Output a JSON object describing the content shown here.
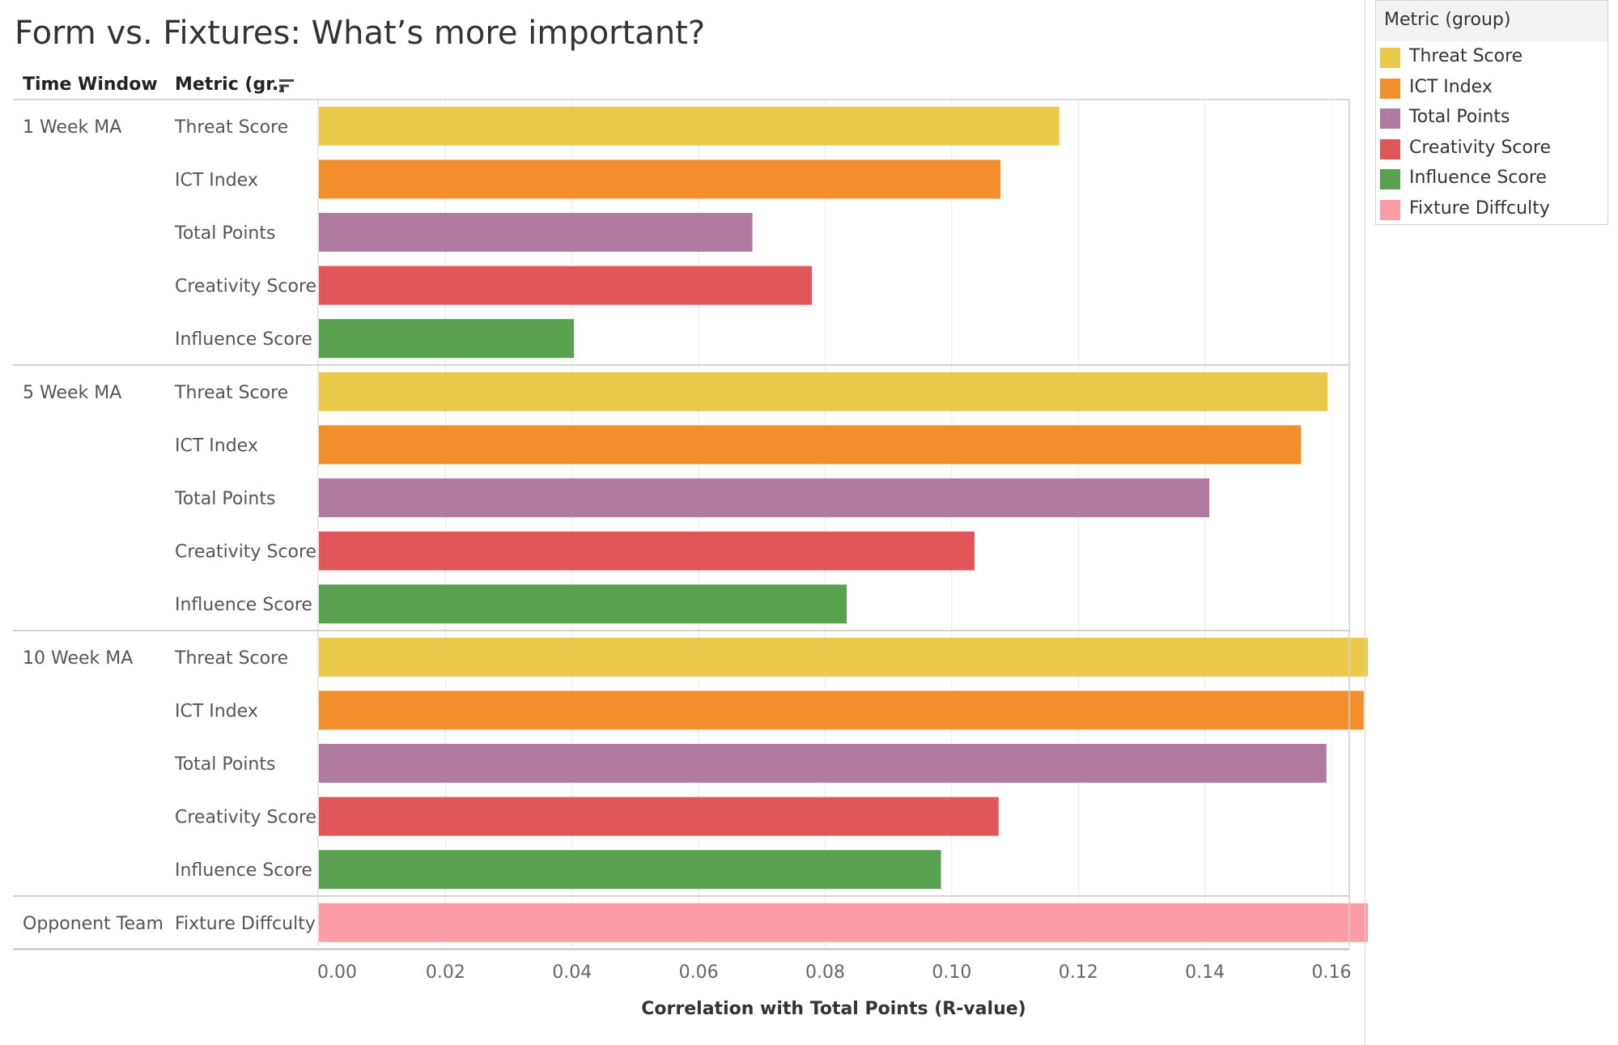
{
  "title": "Form vs. Fixtures: What’s more important?",
  "headers": {
    "time_window": "Time Window",
    "metric": "Metric (gr.."
  },
  "legend": {
    "title": "Metric (group)",
    "items": [
      {
        "label": "Threat Score",
        "color": "#EBC94A"
      },
      {
        "label": "ICT Index",
        "color": "#F28E2C"
      },
      {
        "label": "Total Points",
        "color": "#B07AA1"
      },
      {
        "label": "Creativity Score",
        "color": "#E15759"
      },
      {
        "label": "Influence Score",
        "color": "#59A14F"
      },
      {
        "label": "Fixture Diffculty",
        "color": "#FF9DA7"
      }
    ]
  },
  "chart_data": {
    "type": "bar",
    "orientation": "horizontal",
    "xlabel": "Correlation with Total Points (R-value)",
    "xlim": [
      0,
      0.18
    ],
    "xticks": [
      "0.00",
      "0.02",
      "0.04",
      "0.06",
      "0.08",
      "0.10",
      "0.12",
      "0.14",
      "0.16",
      "0.18"
    ],
    "grid": true,
    "groups": [
      {
        "name": "1 Week MA",
        "bars": [
          {
            "metric": "Threat Score",
            "value": 0.117
          },
          {
            "metric": "ICT Index",
            "value": 0.1077
          },
          {
            "metric": "Total Points",
            "value": 0.0685
          },
          {
            "metric": "Creativity Score",
            "value": 0.0779
          },
          {
            "metric": "Influence Score",
            "value": 0.0403
          }
        ]
      },
      {
        "name": "5 Week MA",
        "bars": [
          {
            "metric": "Threat Score",
            "value": 0.1594
          },
          {
            "metric": "ICT Index",
            "value": 0.1552
          },
          {
            "metric": "Total Points",
            "value": 0.1407
          },
          {
            "metric": "Creativity Score",
            "value": 0.1036
          },
          {
            "metric": "Influence Score",
            "value": 0.0834
          }
        ]
      },
      {
        "name": "10 Week MA",
        "bars": [
          {
            "metric": "Threat Score",
            "value": 0.1671
          },
          {
            "metric": "ICT Index",
            "value": 0.1651
          },
          {
            "metric": "Total Points",
            "value": 0.1592
          },
          {
            "metric": "Creativity Score",
            "value": 0.1074
          },
          {
            "metric": "Influence Score",
            "value": 0.0983
          }
        ]
      },
      {
        "name": "Opponent Team",
        "bars": [
          {
            "metric": "Fixture Diffculty",
            "value": 0.1718
          }
        ]
      }
    ]
  }
}
